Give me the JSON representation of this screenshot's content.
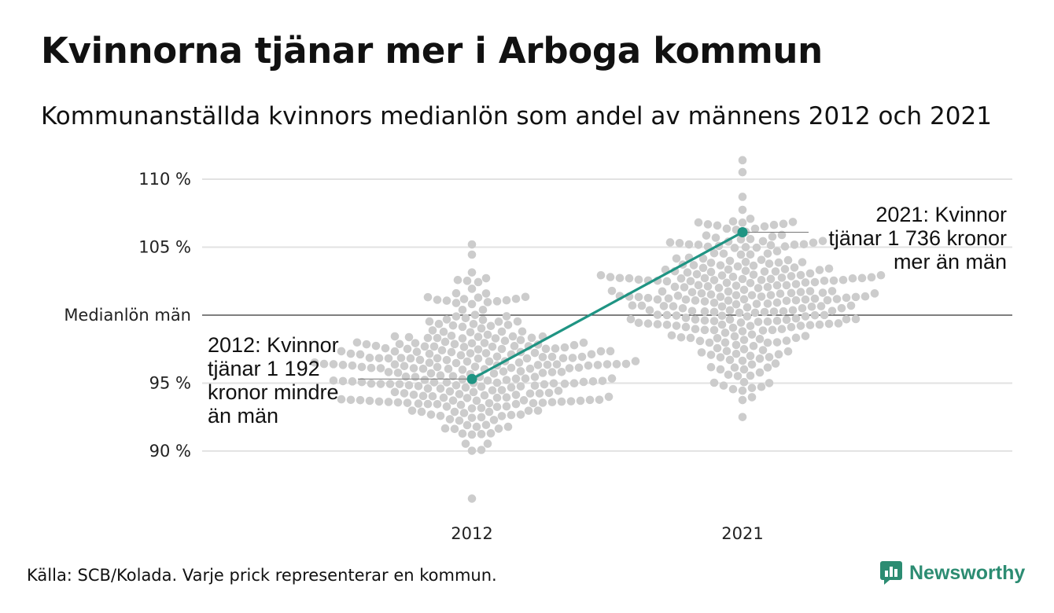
{
  "title": "Kvinnorna tjänar mer i Arboga kommun",
  "subtitle": "Kommunanställda kvinnors medianlön som andel av männens 2012 och 2021",
  "source": "Källa: SCB/Kolada. Varje prick representerar en kommun.",
  "brand": "Newsworthy",
  "colors": {
    "dots": "#cccccc",
    "highlight": "#1f9483",
    "gridline": "#e2e2e2",
    "baseline": "#333333",
    "brand": "#2c8c72"
  },
  "icons": {
    "brand_logo": "bar-chart-bubble-icon"
  },
  "chart_data": {
    "type": "scatter",
    "subtype": "beeswarm",
    "categories": [
      "2012",
      "2021"
    ],
    "y_ticks": [
      {
        "value": 90,
        "label": "90 %"
      },
      {
        "value": 95,
        "label": "95 %"
      },
      {
        "value": 100,
        "label": "Medianlön män"
      },
      {
        "value": 105,
        "label": "105 %"
      },
      {
        "value": 110,
        "label": "110 %"
      }
    ],
    "ylim": [
      85.6,
      112.2
    ],
    "distributions": [
      {
        "category": "2012",
        "min": 86.5,
        "max": 105.2,
        "center": 96.0,
        "spread": 2.9,
        "count": 290
      },
      {
        "category": "2021",
        "min": 92.5,
        "max": 111.4,
        "center": 101.6,
        "spread": 2.9,
        "count": 290
      }
    ],
    "highlight": {
      "name": "Arboga",
      "points": [
        {
          "x": "2012",
          "y": 95.3
        },
        {
          "x": "2021",
          "y": 106.1
        }
      ]
    },
    "annotations": [
      {
        "x": "2012",
        "lines": [
          "2012: Kvinnor",
          "tjänar 1 192",
          "kronor mindre",
          "än män"
        ],
        "align": "left"
      },
      {
        "x": "2021",
        "lines": [
          "2021: Kvinnor",
          "tjänar 1 736 kronor",
          "mer än män"
        ],
        "align": "right"
      }
    ]
  }
}
